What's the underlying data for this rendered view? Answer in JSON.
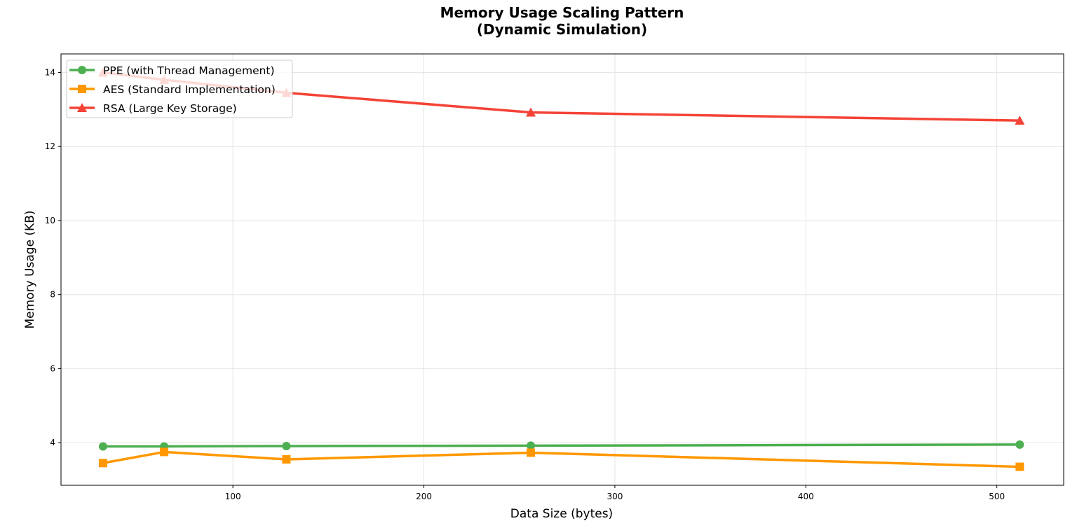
{
  "chart_data": {
    "type": "line",
    "title_line1": "Memory Usage Scaling Pattern",
    "title_line2": "(Dynamic Simulation)",
    "xlabel": "Data Size (bytes)",
    "ylabel": "Memory Usage (KB)",
    "x": [
      32,
      64,
      128,
      256,
      512
    ],
    "xlim": [
      10,
      535
    ],
    "ylim": [
      2.85,
      14.5
    ],
    "xticks": [
      100,
      200,
      300,
      400,
      500
    ],
    "yticks": [
      4,
      6,
      8,
      10,
      12,
      14
    ],
    "grid": true,
    "legend_position": "top-left",
    "series": [
      {
        "name": "PPE (with Thread Management)",
        "color": "#4caf50",
        "marker": "circle",
        "values": [
          3.9,
          3.9,
          3.91,
          3.92,
          3.95
        ]
      },
      {
        "name": "AES (Standard Implementation)",
        "color": "#ff9800",
        "marker": "square",
        "values": [
          3.45,
          3.75,
          3.55,
          3.73,
          3.35
        ]
      },
      {
        "name": "RSA (Large Key Storage)",
        "color": "#f44336",
        "marker": "triangle",
        "values": [
          14.0,
          13.8,
          13.45,
          12.92,
          12.7
        ]
      }
    ]
  }
}
